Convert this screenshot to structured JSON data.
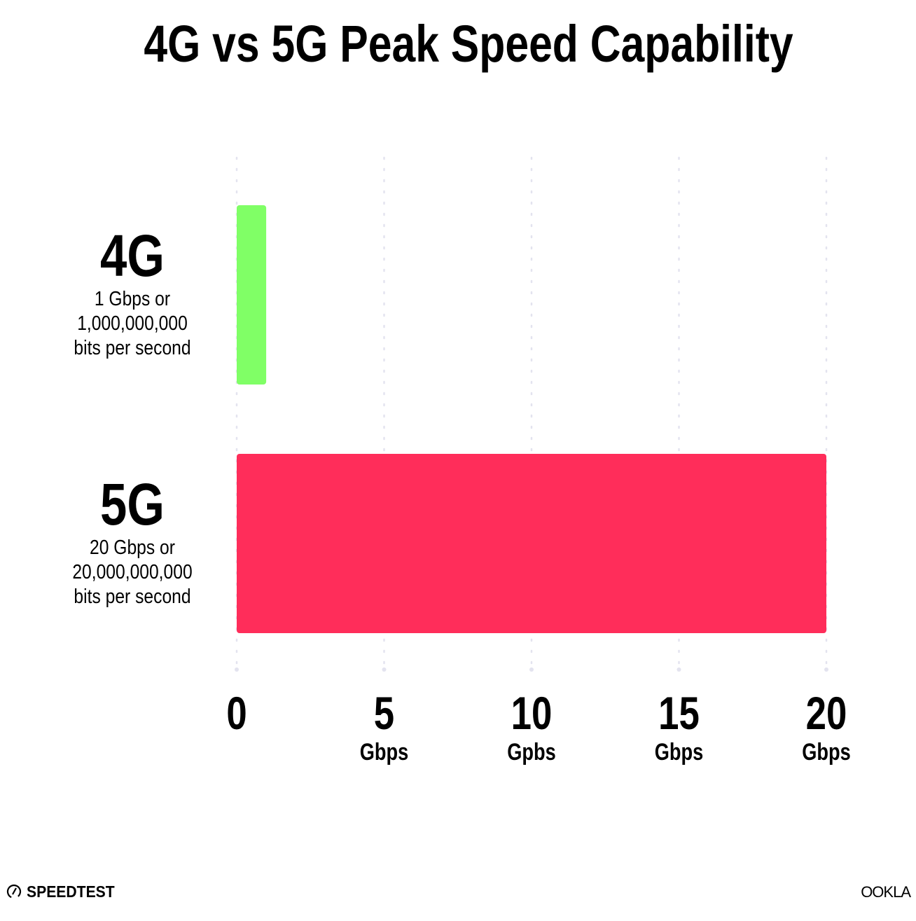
{
  "chart_data": {
    "type": "bar",
    "orientation": "horizontal",
    "title": "4G vs 5G Peak Speed Capability",
    "categories": [
      "4G",
      "5G"
    ],
    "category_sublabels": [
      [
        "1 Gbps or",
        "1,000,000,000",
        "bits per second"
      ],
      [
        "20 Gbps or",
        "20,000,000,000",
        "bits per second"
      ]
    ],
    "values": [
      1,
      20
    ],
    "colors": [
      "#80ff66",
      "#ff2d5a"
    ],
    "xlim": [
      0,
      20
    ],
    "xticks": [
      0,
      5,
      10,
      15,
      20
    ],
    "xtick_labels": [
      "0",
      "5",
      "10",
      "15",
      "20"
    ],
    "xtick_units": [
      "",
      "Gbps",
      "Gpbs",
      "Gbps",
      "Gbps"
    ],
    "grid": "vertical dotted",
    "gridColor": "#e3e3ef"
  },
  "footer": {
    "left_logo": "SPEEDTEST",
    "right_logo": "OOKLA"
  }
}
